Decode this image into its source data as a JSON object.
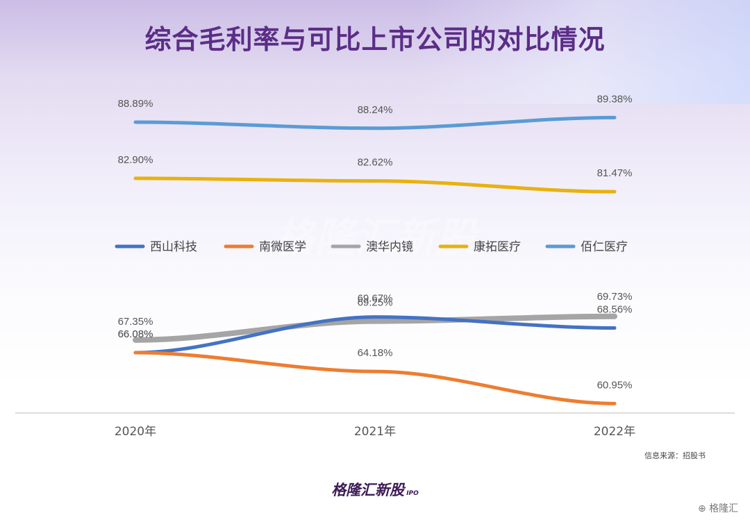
{
  "chart_data": {
    "type": "line",
    "title": "综合毛利率与可比上市公司的对比情况",
    "categories": [
      "2020年",
      "2021年",
      "2022年"
    ],
    "series": [
      {
        "name": "西山科技",
        "color": "#4472c4",
        "values": [
          66.08,
          69.67,
          68.56
        ],
        "labels": [
          "66.08%",
          "69.67%",
          "68.56%"
        ]
      },
      {
        "name": "南微医学",
        "color": "#ed7d31",
        "values": [
          66.08,
          64.18,
          60.95
        ],
        "labels": [
          "66.08%",
          "64.18%",
          "60.95%"
        ]
      },
      {
        "name": "澳华内镜",
        "color": "#a5a5a5",
        "values": [
          67.35,
          69.25,
          69.73
        ],
        "labels": [
          "67.35%",
          "69.25%",
          "69.73%"
        ]
      },
      {
        "name": "康拓医疗",
        "color": "#e8b10e",
        "values": [
          82.9,
          82.62,
          81.47
        ],
        "labels": [
          "82.90%",
          "82.62%",
          "81.47%"
        ]
      },
      {
        "name": "佰仁医疗",
        "color": "#5b9bd5",
        "values": [
          88.89,
          88.24,
          89.38
        ],
        "labels": [
          "88.89%",
          "88.24%",
          "89.38%"
        ]
      }
    ],
    "legend_position": "middle",
    "grid": false
  },
  "watermark": "格隆汇新股",
  "source_note": "信息来源：招股书",
  "footer_logo": "格隆汇新股",
  "footer_logo_sub": "IPO",
  "corner_mark": "⊕ 格隆汇"
}
